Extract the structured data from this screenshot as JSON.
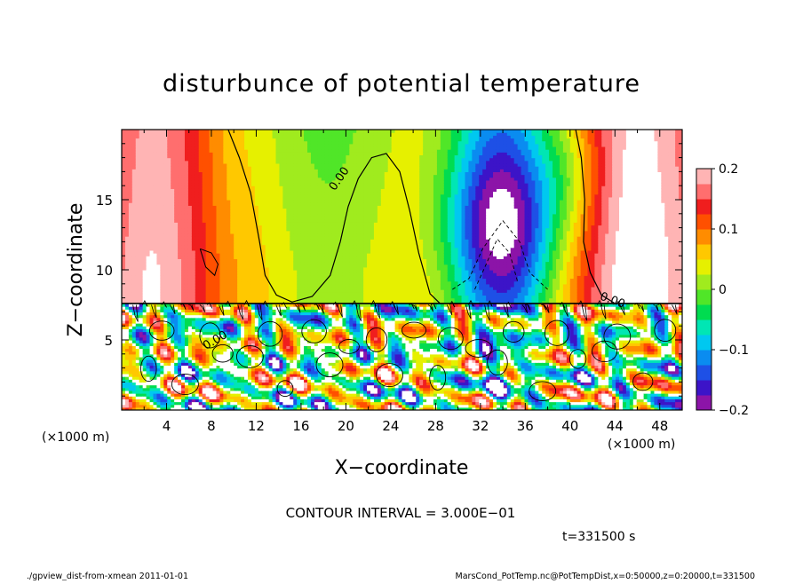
{
  "chart_data": {
    "type": "heatmap",
    "title": "disturbunce of potential temperature",
    "xlabel": "X−coordinate",
    "ylabel": "Z−coordinate",
    "xlim": [
      0,
      50
    ],
    "ylim": [
      0,
      20
    ],
    "x_ticks": [
      "4",
      "8",
      "12",
      "16",
      "20",
      "24",
      "28",
      "32",
      "36",
      "40",
      "44",
      "48"
    ],
    "y_ticks": [
      "5",
      "10",
      "15"
    ],
    "x_unit": "(×1000 m)",
    "y_unit": "(×1000 m)",
    "colorbar": {
      "range": [
        -0.2,
        0.2
      ],
      "ticks": [
        "0.2",
        "0.1",
        "0",
        "−0.1",
        "−0.2"
      ],
      "colors": [
        "#8c14a8",
        "#3c14c8",
        "#1e50e6",
        "#0a8cf0",
        "#00c8f0",
        "#00e6b4",
        "#00dc50",
        "#50e628",
        "#a0eb1e",
        "#e6f000",
        "#ffc800",
        "#ff8c00",
        "#ff5000",
        "#f01e1e",
        "#ff6e6e",
        "#ffb4b4"
      ]
    },
    "contour_labels": [
      "0.00",
      "0.00",
      "0.00"
    ],
    "contour_interval_text": "CONTOUR INTERVAL = 3.000E−01",
    "time_text": "t=331500 s"
  },
  "footer": {
    "left": "./gpview_dist-from-xmean   2011-01-01",
    "right": "MarsCond_PotTemp.nc@PotTempDist,x=0:50000,z=0:20000,t=331500"
  }
}
